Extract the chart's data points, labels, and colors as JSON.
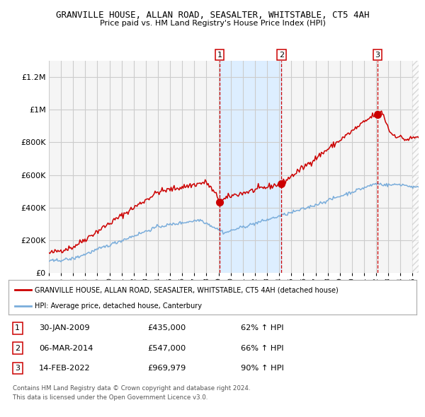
{
  "title": "GRANVILLE HOUSE, ALLAN ROAD, SEASALTER, WHITSTABLE, CT5 4AH",
  "subtitle": "Price paid vs. HM Land Registry's House Price Index (HPI)",
  "red_label": "GRANVILLE HOUSE, ALLAN ROAD, SEASALTER, WHITSTABLE, CT5 4AH (detached house)",
  "blue_label": "HPI: Average price, detached house, Canterbury",
  "transactions": [
    {
      "num": 1,
      "date": "30-JAN-2009",
      "price": 435000,
      "year": 2009.08,
      "hpi_pct": "62% ↑ HPI"
    },
    {
      "num": 2,
      "date": "06-MAR-2014",
      "price": 547000,
      "year": 2014.18,
      "hpi_pct": "66% ↑ HPI"
    },
    {
      "num": 3,
      "date": "14-FEB-2022",
      "price": 969979,
      "year": 2022.12,
      "hpi_pct": "90% ↑ HPI"
    }
  ],
  "footer_line1": "Contains HM Land Registry data © Crown copyright and database right 2024.",
  "footer_line2": "This data is licensed under the Open Government Licence v3.0.",
  "ylim": [
    0,
    1300000
  ],
  "xlim_start": 1995.0,
  "xlim_end": 2025.5,
  "red_color": "#cc0000",
  "blue_color": "#7aaddb",
  "dot_color": "#cc0000",
  "shade_color": "#ddeeff",
  "grid_color": "#cccccc",
  "bg_color": "#f5f5f5",
  "yticks": [
    0,
    200000,
    400000,
    600000,
    800000,
    1000000,
    1200000
  ],
  "ytick_labels": [
    "£0",
    "£200K",
    "£400K",
    "£600K",
    "£800K",
    "£1M",
    "£1.2M"
  ]
}
